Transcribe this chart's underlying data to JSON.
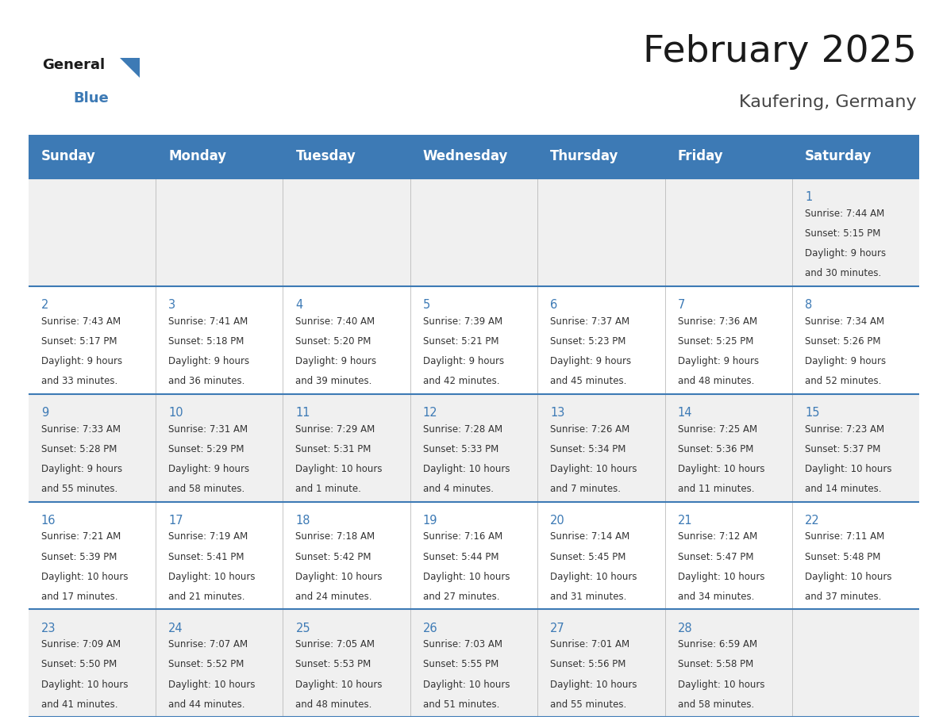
{
  "title": "February 2025",
  "subtitle": "Kaufering, Germany",
  "header_color": "#3D7AB5",
  "header_text_color": "#FFFFFF",
  "background_color": "#FFFFFF",
  "cell_bg_even": "#F0F0F0",
  "cell_bg_odd": "#FFFFFF",
  "day_names": [
    "Sunday",
    "Monday",
    "Tuesday",
    "Wednesday",
    "Thursday",
    "Friday",
    "Saturday"
  ],
  "title_fontsize": 34,
  "subtitle_fontsize": 16,
  "header_fontsize": 12,
  "day_num_fontsize": 10.5,
  "cell_fontsize": 8.5,
  "days": [
    {
      "day": 1,
      "col": 6,
      "row": 0,
      "sunrise": "7:44 AM",
      "sunset": "5:15 PM",
      "daylight_line1": "Daylight: 9 hours",
      "daylight_line2": "and 30 minutes."
    },
    {
      "day": 2,
      "col": 0,
      "row": 1,
      "sunrise": "7:43 AM",
      "sunset": "5:17 PM",
      "daylight_line1": "Daylight: 9 hours",
      "daylight_line2": "and 33 minutes."
    },
    {
      "day": 3,
      "col": 1,
      "row": 1,
      "sunrise": "7:41 AM",
      "sunset": "5:18 PM",
      "daylight_line1": "Daylight: 9 hours",
      "daylight_line2": "and 36 minutes."
    },
    {
      "day": 4,
      "col": 2,
      "row": 1,
      "sunrise": "7:40 AM",
      "sunset": "5:20 PM",
      "daylight_line1": "Daylight: 9 hours",
      "daylight_line2": "and 39 minutes."
    },
    {
      "day": 5,
      "col": 3,
      "row": 1,
      "sunrise": "7:39 AM",
      "sunset": "5:21 PM",
      "daylight_line1": "Daylight: 9 hours",
      "daylight_line2": "and 42 minutes."
    },
    {
      "day": 6,
      "col": 4,
      "row": 1,
      "sunrise": "7:37 AM",
      "sunset": "5:23 PM",
      "daylight_line1": "Daylight: 9 hours",
      "daylight_line2": "and 45 minutes."
    },
    {
      "day": 7,
      "col": 5,
      "row": 1,
      "sunrise": "7:36 AM",
      "sunset": "5:25 PM",
      "daylight_line1": "Daylight: 9 hours",
      "daylight_line2": "and 48 minutes."
    },
    {
      "day": 8,
      "col": 6,
      "row": 1,
      "sunrise": "7:34 AM",
      "sunset": "5:26 PM",
      "daylight_line1": "Daylight: 9 hours",
      "daylight_line2": "and 52 minutes."
    },
    {
      "day": 9,
      "col": 0,
      "row": 2,
      "sunrise": "7:33 AM",
      "sunset": "5:28 PM",
      "daylight_line1": "Daylight: 9 hours",
      "daylight_line2": "and 55 minutes."
    },
    {
      "day": 10,
      "col": 1,
      "row": 2,
      "sunrise": "7:31 AM",
      "sunset": "5:29 PM",
      "daylight_line1": "Daylight: 9 hours",
      "daylight_line2": "and 58 minutes."
    },
    {
      "day": 11,
      "col": 2,
      "row": 2,
      "sunrise": "7:29 AM",
      "sunset": "5:31 PM",
      "daylight_line1": "Daylight: 10 hours",
      "daylight_line2": "and 1 minute."
    },
    {
      "day": 12,
      "col": 3,
      "row": 2,
      "sunrise": "7:28 AM",
      "sunset": "5:33 PM",
      "daylight_line1": "Daylight: 10 hours",
      "daylight_line2": "and 4 minutes."
    },
    {
      "day": 13,
      "col": 4,
      "row": 2,
      "sunrise": "7:26 AM",
      "sunset": "5:34 PM",
      "daylight_line1": "Daylight: 10 hours",
      "daylight_line2": "and 7 minutes."
    },
    {
      "day": 14,
      "col": 5,
      "row": 2,
      "sunrise": "7:25 AM",
      "sunset": "5:36 PM",
      "daylight_line1": "Daylight: 10 hours",
      "daylight_line2": "and 11 minutes."
    },
    {
      "day": 15,
      "col": 6,
      "row": 2,
      "sunrise": "7:23 AM",
      "sunset": "5:37 PM",
      "daylight_line1": "Daylight: 10 hours",
      "daylight_line2": "and 14 minutes."
    },
    {
      "day": 16,
      "col": 0,
      "row": 3,
      "sunrise": "7:21 AM",
      "sunset": "5:39 PM",
      "daylight_line1": "Daylight: 10 hours",
      "daylight_line2": "and 17 minutes."
    },
    {
      "day": 17,
      "col": 1,
      "row": 3,
      "sunrise": "7:19 AM",
      "sunset": "5:41 PM",
      "daylight_line1": "Daylight: 10 hours",
      "daylight_line2": "and 21 minutes."
    },
    {
      "day": 18,
      "col": 2,
      "row": 3,
      "sunrise": "7:18 AM",
      "sunset": "5:42 PM",
      "daylight_line1": "Daylight: 10 hours",
      "daylight_line2": "and 24 minutes."
    },
    {
      "day": 19,
      "col": 3,
      "row": 3,
      "sunrise": "7:16 AM",
      "sunset": "5:44 PM",
      "daylight_line1": "Daylight: 10 hours",
      "daylight_line2": "and 27 minutes."
    },
    {
      "day": 20,
      "col": 4,
      "row": 3,
      "sunrise": "7:14 AM",
      "sunset": "5:45 PM",
      "daylight_line1": "Daylight: 10 hours",
      "daylight_line2": "and 31 minutes."
    },
    {
      "day": 21,
      "col": 5,
      "row": 3,
      "sunrise": "7:12 AM",
      "sunset": "5:47 PM",
      "daylight_line1": "Daylight: 10 hours",
      "daylight_line2": "and 34 minutes."
    },
    {
      "day": 22,
      "col": 6,
      "row": 3,
      "sunrise": "7:11 AM",
      "sunset": "5:48 PM",
      "daylight_line1": "Daylight: 10 hours",
      "daylight_line2": "and 37 minutes."
    },
    {
      "day": 23,
      "col": 0,
      "row": 4,
      "sunrise": "7:09 AM",
      "sunset": "5:50 PM",
      "daylight_line1": "Daylight: 10 hours",
      "daylight_line2": "and 41 minutes."
    },
    {
      "day": 24,
      "col": 1,
      "row": 4,
      "sunrise": "7:07 AM",
      "sunset": "5:52 PM",
      "daylight_line1": "Daylight: 10 hours",
      "daylight_line2": "and 44 minutes."
    },
    {
      "day": 25,
      "col": 2,
      "row": 4,
      "sunrise": "7:05 AM",
      "sunset": "5:53 PM",
      "daylight_line1": "Daylight: 10 hours",
      "daylight_line2": "and 48 minutes."
    },
    {
      "day": 26,
      "col": 3,
      "row": 4,
      "sunrise": "7:03 AM",
      "sunset": "5:55 PM",
      "daylight_line1": "Daylight: 10 hours",
      "daylight_line2": "and 51 minutes."
    },
    {
      "day": 27,
      "col": 4,
      "row": 4,
      "sunrise": "7:01 AM",
      "sunset": "5:56 PM",
      "daylight_line1": "Daylight: 10 hours",
      "daylight_line2": "and 55 minutes."
    },
    {
      "day": 28,
      "col": 5,
      "row": 4,
      "sunrise": "6:59 AM",
      "sunset": "5:58 PM",
      "daylight_line1": "Daylight: 10 hours",
      "daylight_line2": "and 58 minutes."
    }
  ],
  "num_rows": 5,
  "num_cols": 7,
  "line_color": "#3D7AB5",
  "text_color": "#333333",
  "grid_line_color": "#BBBBBB",
  "logo_general_color": "#1a1a1a",
  "logo_blue_color": "#3D7AB5",
  "logo_triangle_color": "#3D7AB5"
}
